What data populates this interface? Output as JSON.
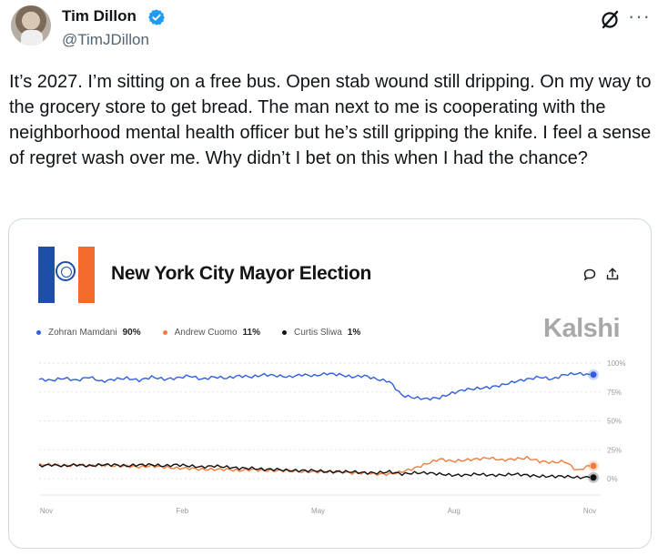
{
  "post": {
    "author_name": "Tim Dillon",
    "author_handle": "@TimJDillon",
    "more_glyph": "···",
    "text": "It’s 2027. I’m sitting on a free bus. Open stab wound still dripping. On my way to the grocery store to get bread. The man next to me is cooperating with the neighborhood mental health officer but he’s still gripping the knife. I feel a sense of regret wash over me. Why didn’t I bet on this when I had the chance?"
  },
  "card": {
    "title": "New York City Mayor Election",
    "brand": "Kalshi",
    "legend": [
      {
        "name": "Zohran Mamdani",
        "value": "90%",
        "color": "#2f5fe0"
      },
      {
        "name": "Andrew Cuomo",
        "value": "11%",
        "color": "#f07c3c"
      },
      {
        "name": "Curtis Sliwa",
        "value": "1%",
        "color": "#111111"
      }
    ]
  },
  "chart_data": {
    "type": "line",
    "x_ticks": [
      "Nov",
      "Feb",
      "May",
      "Aug",
      "Nov"
    ],
    "y_ticks": [
      "100%",
      "75%",
      "50%",
      "25%",
      "0%"
    ],
    "ylim": [
      0,
      100
    ],
    "grid": true,
    "legend_position": "top-left",
    "series": [
      {
        "name": "Zohran Mamdani",
        "color": "#2f5fe0",
        "values": [
          86,
          85,
          87,
          85,
          88,
          84,
          86,
          87,
          85,
          88,
          86,
          87,
          89,
          86,
          88,
          87,
          89,
          88,
          90,
          89,
          88,
          90,
          89,
          91,
          90,
          88,
          89,
          86,
          84,
          72,
          70,
          69,
          70,
          74,
          77,
          78,
          79,
          81,
          84,
          86,
          88,
          86,
          90,
          91,
          90
        ]
      },
      {
        "name": "Andrew Cuomo",
        "color": "#f07c3c",
        "values": [
          12,
          12,
          11,
          12,
          11,
          12,
          11,
          11,
          10,
          11,
          10,
          9,
          9,
          8,
          8,
          8,
          7,
          8,
          7,
          7,
          7,
          6,
          6,
          6,
          6,
          5,
          5,
          4,
          4,
          6,
          9,
          13,
          17,
          15,
          16,
          17,
          18,
          16,
          17,
          18,
          15,
          14,
          15,
          7,
          11
        ]
      },
      {
        "name": "Curtis Sliwa",
        "color": "#111111",
        "values": [
          11,
          12,
          11,
          12,
          11,
          12,
          12,
          11,
          12,
          12,
          11,
          12,
          11,
          10,
          11,
          10,
          9,
          9,
          8,
          8,
          7,
          7,
          7,
          6,
          6,
          6,
          5,
          5,
          6,
          4,
          5,
          5,
          4,
          3,
          3,
          4,
          3,
          3,
          4,
          3,
          2,
          2,
          2,
          1,
          1
        ]
      }
    ]
  }
}
